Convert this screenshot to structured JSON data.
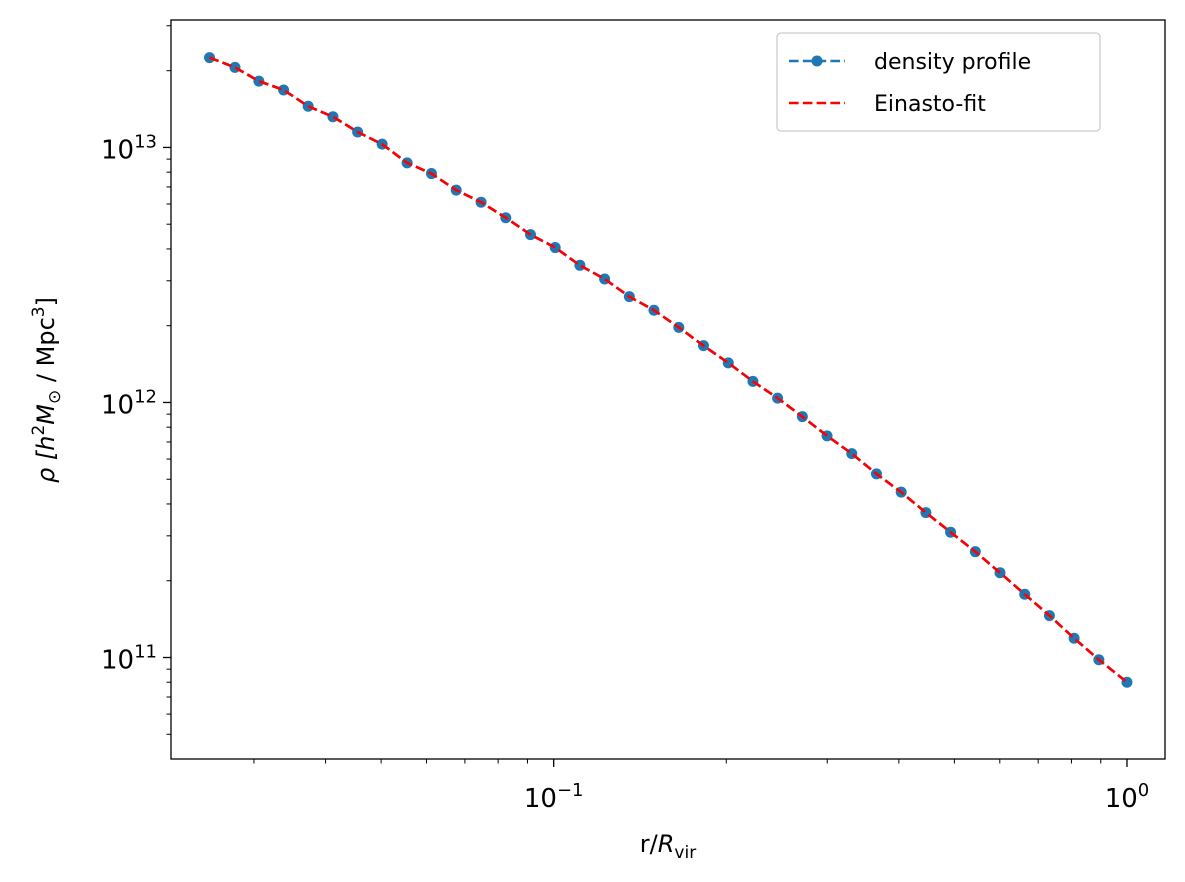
{
  "chart_data": {
    "type": "line",
    "title": "",
    "xlabel": {
      "base": "r/",
      "var": "R",
      "sub": "vir"
    },
    "ylabel": {
      "prefix": "ρ [",
      "h": "h",
      "hsup": "2",
      "M": "M",
      "msub": "⊙",
      "mid": " / Mpc",
      "csup": "3",
      "suffix": "]"
    },
    "x_scale": "log",
    "y_scale": "log",
    "xlim": [
      0.0215,
      1.165
    ],
    "ylim": [
      40000000000.0,
      31600000000000.0
    ],
    "x_ticks": [
      {
        "value": 0.1,
        "base": "10",
        "exp": "−1"
      },
      {
        "value": 1.0,
        "base": "10",
        "exp": "0"
      }
    ],
    "y_ticks": [
      {
        "value": 100000000000.0,
        "base": "10",
        "exp": "11"
      },
      {
        "value": 1000000000000.0,
        "base": "10",
        "exp": "12"
      },
      {
        "value": 10000000000000.0,
        "base": "10",
        "exp": "13"
      }
    ],
    "grid": false,
    "legend_position": "top-right",
    "series": [
      {
        "name": "density profile",
        "color": "#1f77b4",
        "style": "dashed-with-markers",
        "x": [
          0.0251,
          0.0278,
          0.0306,
          0.0338,
          0.0373,
          0.0412,
          0.0455,
          0.0502,
          0.0555,
          0.0612,
          0.0676,
          0.0747,
          0.0825,
          0.0911,
          0.1006,
          0.1111,
          0.1227,
          0.1355,
          0.1496,
          0.1653,
          0.1825,
          0.2016,
          0.2226,
          0.2458,
          0.2715,
          0.2998,
          0.3311,
          0.3656,
          0.4038,
          0.4459,
          0.4924,
          0.5438,
          0.6005,
          0.6632,
          0.7324,
          0.8088,
          0.8932,
          1.0
        ],
        "y": [
          22500000000000.0,
          20600000000000.0,
          18200000000000.0,
          16800000000000.0,
          14500000000000.0,
          13200000000000.0,
          11500000000000.0,
          10300000000000.0,
          8700000000000.0,
          7900000000000.0,
          6800000000000.0,
          6100000000000.0,
          5300000000000.0,
          4550000000000.0,
          4050000000000.0,
          3450000000000.0,
          3050000000000.0,
          2600000000000.0,
          2300000000000.0,
          1970000000000.0,
          1670000000000.0,
          1430000000000.0,
          1210000000000.0,
          1040000000000.0,
          880000000000.0,
          740000000000.0,
          630000000000.0,
          525000000000.0,
          445000000000.0,
          370000000000.0,
          310000000000.0,
          260000000000.0,
          215000000000.0,
          177000000000.0,
          146000000000.0,
          119000000000.0,
          98000000000.0,
          80000000000.0
        ]
      },
      {
        "name": "Einasto-fit",
        "color": "#ff0000",
        "style": "dashed"
      }
    ]
  }
}
